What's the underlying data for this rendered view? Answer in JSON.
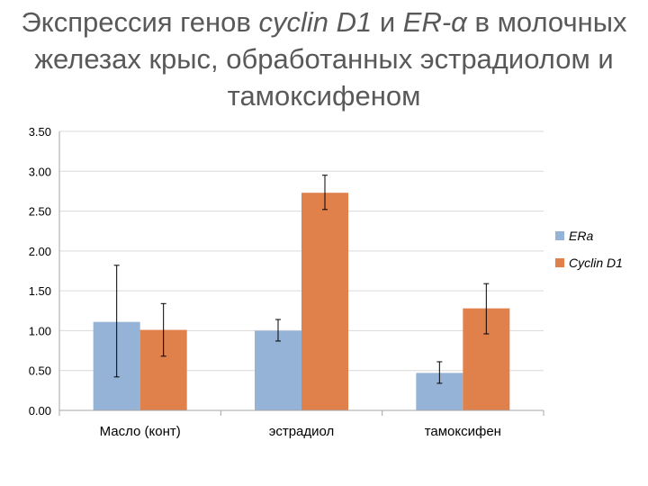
{
  "title_parts": [
    {
      "text": "Экспрессия генов ",
      "italic": false
    },
    {
      "text": "cyclin D1",
      "italic": true
    },
    {
      "text": " и ",
      "italic": false
    },
    {
      "text": "ER-α",
      "italic": true
    },
    {
      "text": " в молочных железах крыс, обработанных эстрадиолом и тамоксифеном",
      "italic": false
    }
  ],
  "colors": {
    "ERa": "#95b3d7",
    "Cyclin D1": "#e0804a",
    "grid": "#d9d9d9",
    "axis": "#a6a6a6",
    "title": "#595959"
  },
  "chart_data": {
    "type": "bar",
    "title": "Экспрессия генов cyclin D1 и ER-α в молочных железах крыс, обработанных эстрадиолом и тамоксифеном",
    "categories": [
      "Масло (конт)",
      "эстрадиол",
      "тамоксифен"
    ],
    "series": [
      {
        "name": "ERa",
        "values": [
          1.11,
          1.0,
          0.47
        ],
        "error_low": [
          0.42,
          0.87,
          0.34
        ],
        "error_high": [
          1.82,
          1.14,
          0.61
        ]
      },
      {
        "name": "Cyclin D1",
        "values": [
          1.01,
          2.73,
          1.28
        ],
        "error_low": [
          0.68,
          2.52,
          0.96
        ],
        "error_high": [
          1.34,
          2.95,
          1.59
        ]
      }
    ],
    "ylim": [
      0,
      3.5
    ],
    "yticks": [
      "0.00",
      "0.50",
      "1.00",
      "1.50",
      "2.00",
      "2.50",
      "3.00",
      "3.50"
    ],
    "xlabel": "",
    "ylabel": "",
    "grid": true,
    "legend_position": "right"
  }
}
